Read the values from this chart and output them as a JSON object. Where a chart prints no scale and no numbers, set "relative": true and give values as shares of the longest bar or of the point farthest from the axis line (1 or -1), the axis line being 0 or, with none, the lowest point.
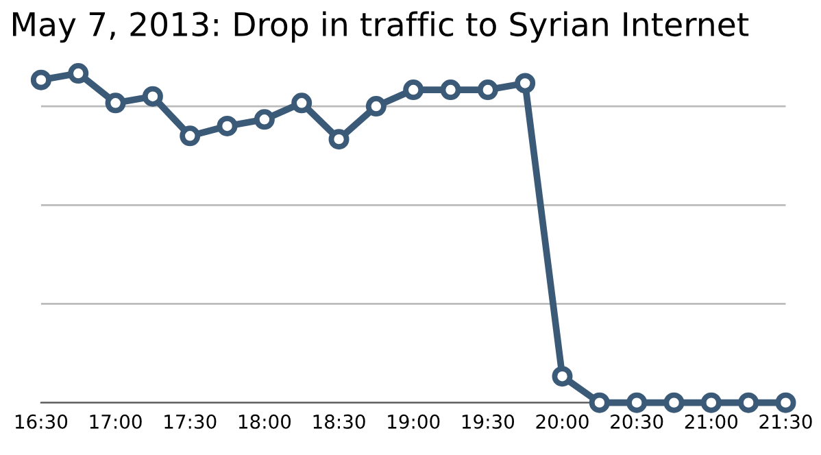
{
  "chart_data": {
    "type": "line",
    "title": "May 7, 2013: Drop in traffic to Syrian Internet",
    "relative": true,
    "x": [
      16.5,
      16.75,
      17.0,
      17.25,
      17.5,
      17.75,
      18.0,
      18.25,
      18.5,
      18.75,
      19.0,
      19.25,
      19.5,
      19.75,
      20.0,
      20.25,
      20.5,
      20.75,
      21.0,
      21.25,
      21.5
    ],
    "series": [
      {
        "color": "#3a5a78",
        "values": [
          0.98,
          1.0,
          0.91,
          0.93,
          0.81,
          0.84,
          0.86,
          0.91,
          0.8,
          0.9,
          0.95,
          0.95,
          0.95,
          0.97,
          0.08,
          0,
          0,
          0,
          0,
          0,
          0
        ]
      }
    ],
    "xlim": [
      16.5,
      21.5
    ],
    "xticks": [
      {
        "value": 16.5,
        "label": "16:30"
      },
      {
        "value": 17.0,
        "label": "17:00"
      },
      {
        "value": 17.5,
        "label": "17:30"
      },
      {
        "value": 18.0,
        "label": "18:00"
      },
      {
        "value": 18.5,
        "label": "18:30"
      },
      {
        "value": 19.0,
        "label": "19:00"
      },
      {
        "value": 19.5,
        "label": "19:30"
      },
      {
        "value": 20.0,
        "label": "20:00"
      },
      {
        "value": 20.5,
        "label": "20:30"
      },
      {
        "value": 21.0,
        "label": "21:00"
      },
      {
        "value": 21.5,
        "label": "21:30"
      }
    ],
    "grid": "y",
    "marker": "circle",
    "line_style": "solid",
    "legend": false
  }
}
